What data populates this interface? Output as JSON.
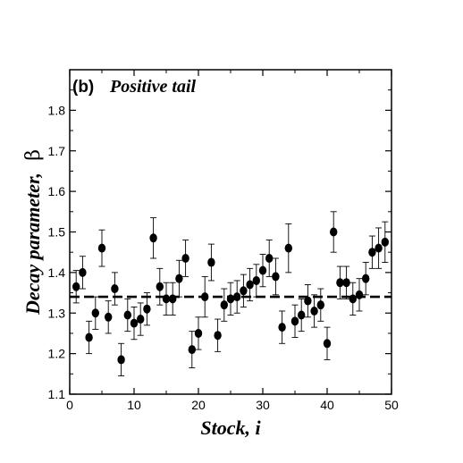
{
  "chart_data": {
    "type": "scatter",
    "panel_label": "(b)",
    "title": "Positive tail",
    "xlabel": "Stock, i",
    "ylabel_text": "Decay parameter,",
    "ylabel_symbol": "β",
    "xlim": [
      0,
      50
    ],
    "ylim": [
      1.1,
      1.9
    ],
    "x_ticks": [
      0,
      10,
      20,
      30,
      40,
      50
    ],
    "x_tick_labels": [
      "0",
      "10",
      "20",
      "30",
      "40",
      "50"
    ],
    "y_ticks": [
      1.1,
      1.2,
      1.3,
      1.4,
      1.5,
      1.6,
      1.7,
      1.8
    ],
    "y_tick_labels": [
      "1.1",
      "1.2",
      "1.3",
      "1.4",
      "1.5",
      "1.6",
      "1.7",
      "1.8"
    ],
    "grid": false,
    "reference_line": {
      "y": 1.34,
      "style": "dashed"
    },
    "series": [
      {
        "marker": "filled-circle",
        "color": "#000000",
        "x": [
          1,
          2,
          3,
          4,
          5,
          6,
          7,
          8,
          9,
          10,
          11,
          12,
          13,
          14,
          15,
          16,
          17,
          18,
          19,
          20,
          21,
          22,
          23,
          24,
          25,
          26,
          27,
          28,
          29,
          30,
          31,
          32,
          33,
          34,
          35,
          36,
          37,
          38,
          39,
          40,
          41,
          42,
          43,
          44,
          45,
          46,
          47,
          48,
          49
        ],
        "y": [
          1.365,
          1.4,
          1.24,
          1.3,
          1.46,
          1.29,
          1.36,
          1.185,
          1.295,
          1.275,
          1.285,
          1.31,
          1.485,
          1.365,
          1.335,
          1.335,
          1.385,
          1.435,
          1.21,
          1.25,
          1.34,
          1.425,
          1.245,
          1.32,
          1.335,
          1.34,
          1.355,
          1.37,
          1.38,
          1.405,
          1.435,
          1.39,
          1.265,
          1.46,
          1.28,
          1.295,
          1.33,
          1.305,
          1.32,
          1.225,
          1.5,
          1.375,
          1.375,
          1.335,
          1.345,
          1.385,
          1.45,
          1.46,
          1.475
        ],
        "error": [
          0.04,
          0.04,
          0.04,
          0.04,
          0.045,
          0.04,
          0.04,
          0.04,
          0.04,
          0.04,
          0.04,
          0.04,
          0.05,
          0.045,
          0.04,
          0.04,
          0.045,
          0.045,
          0.045,
          0.04,
          0.05,
          0.045,
          0.04,
          0.04,
          0.04,
          0.04,
          0.04,
          0.04,
          0.04,
          0.04,
          0.045,
          0.045,
          0.04,
          0.06,
          0.04,
          0.04,
          0.04,
          0.04,
          0.04,
          0.04,
          0.05,
          0.04,
          0.04,
          0.04,
          0.04,
          0.04,
          0.04,
          0.05,
          0.05
        ]
      }
    ]
  }
}
